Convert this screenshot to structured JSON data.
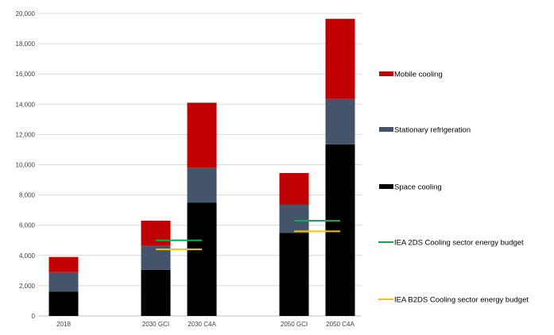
{
  "chart_data": {
    "type": "bar",
    "stacked": true,
    "title": "",
    "xlabel": "",
    "ylabel": "",
    "ylim": [
      0,
      20000
    ],
    "yticks": [
      "0",
      "2,000",
      "4,000",
      "6,000",
      "8,000",
      "10,000",
      "12,000",
      "14,000",
      "16,000",
      "18,000",
      "20,000"
    ],
    "grid": true,
    "legend_position": "right",
    "categories": [
      "2018",
      "2030 GCI",
      "2030 C4A",
      "2050 GCI",
      "2050 C4A"
    ],
    "series": [
      {
        "name": "Space cooling",
        "color": "#000000",
        "values": [
          1600,
          3050,
          7500,
          5500,
          11350
        ]
      },
      {
        "name": "Stationary refrigeration",
        "color": "#44546a",
        "values": [
          1300,
          1600,
          2300,
          1850,
          3000
        ]
      },
      {
        "name": "Mobile cooling",
        "color": "#c00000",
        "values": [
          1000,
          1650,
          4300,
          2100,
          5300
        ]
      }
    ],
    "reference_lines": [
      {
        "name": "IEA 2DS Cooling sector energy budget",
        "color": "#00b050",
        "segments": [
          {
            "category": "2030 GCI",
            "value": 5000
          },
          {
            "category": "2050 GCI",
            "value": 6300
          }
        ]
      },
      {
        "name": "IEA B2DS Cooling sector energy budget",
        "color": "#ffc000",
        "segments": [
          {
            "category": "2030 GCI",
            "value": 4400
          },
          {
            "category": "2050 GCI",
            "value": 5600
          }
        ]
      }
    ],
    "legend": [
      {
        "label": "Mobile cooling",
        "color": "#c00000",
        "kind": "box"
      },
      {
        "label": "Stationary refrigeration",
        "color": "#44546a",
        "kind": "box"
      },
      {
        "label": "Space cooling",
        "color": "#000000",
        "kind": "box"
      },
      {
        "label": "IEA 2DS Cooling sector energy budget",
        "color": "#00b050",
        "kind": "line"
      },
      {
        "label": "IEA B2DS Cooling sector energy budget",
        "color": "#ffc000",
        "kind": "line"
      }
    ]
  }
}
